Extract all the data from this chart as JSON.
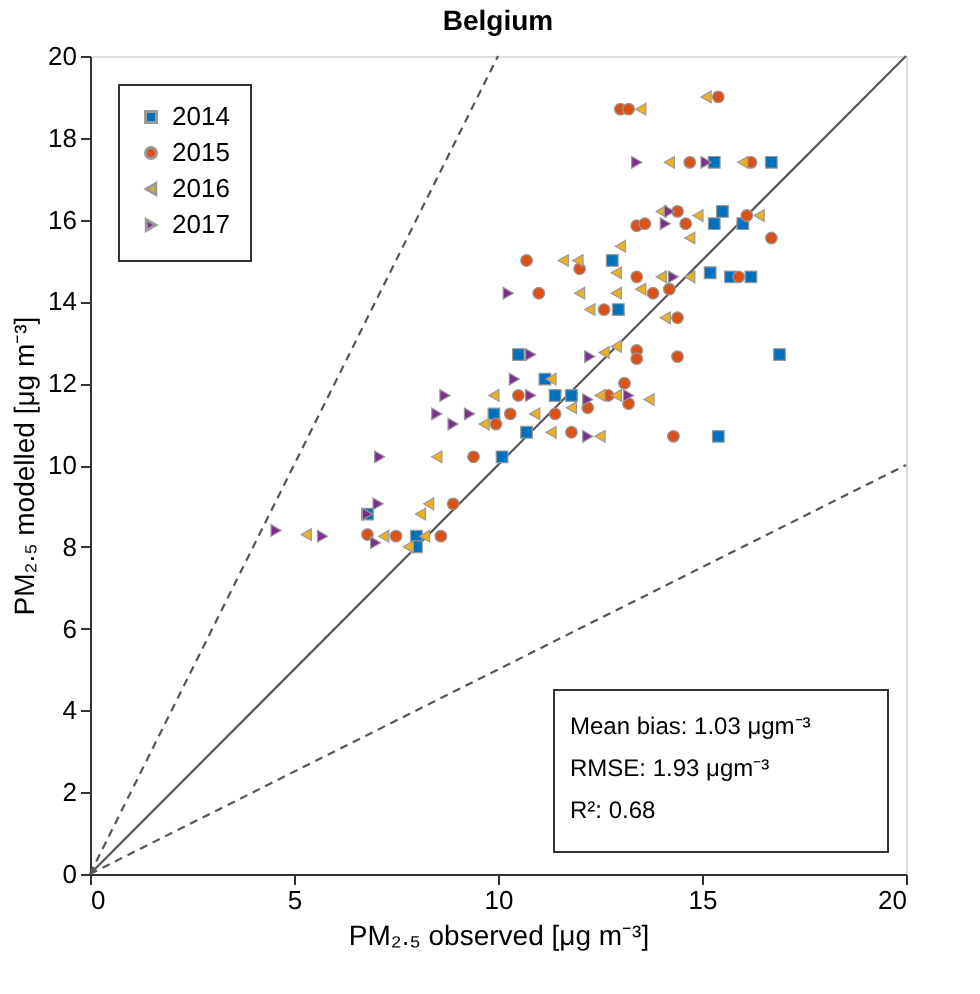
{
  "chart_data": {
    "type": "scatter",
    "title": "Belgium",
    "xlabel": "PM₂.₅ observed [μg m⁻³]",
    "ylabel": "PM₂.₅ modelled [μg m⁻³]",
    "xlim": [
      0,
      20
    ],
    "ylim": [
      0,
      20
    ],
    "xticks": [
      0,
      5,
      10,
      15,
      20
    ],
    "yticks": [
      0,
      2,
      4,
      6,
      8,
      10,
      12,
      14,
      16,
      18,
      20
    ],
    "grid": false,
    "legend": "top left",
    "annotations": [
      "Mean bias: 1.03 μgm⁻³",
      "RMSE: 1.93 μgm⁻³",
      "R²: 0.68"
    ],
    "series": [
      {
        "type": "line",
        "x": [
          0,
          20
        ],
        "values": [
          0,
          20
        ],
        "color": "#555555",
        "line_style": "solid"
      },
      {
        "type": "line",
        "x": [
          0,
          10
        ],
        "values": [
          0,
          20
        ],
        "color": "#555555",
        "line_style": "dashed"
      },
      {
        "type": "line",
        "x": [
          0,
          20
        ],
        "values": [
          0,
          10
        ],
        "color": "#555555",
        "line_style": "dashed"
      },
      {
        "name": "2014",
        "color": "#0072bd",
        "marker": "square",
        "x": [
          15.3,
          16.7,
          15.5,
          15.3,
          16.0,
          12.8,
          15.2,
          15.7,
          16.2,
          12.95,
          10.5,
          16.9,
          11.15,
          9.9,
          11.4,
          11.8,
          10.1,
          10.7,
          15.4,
          6.8,
          8.0,
          8.0
        ],
        "values": [
          17.4,
          17.4,
          16.2,
          15.9,
          15.9,
          15.0,
          14.7,
          14.6,
          14.6,
          13.8,
          12.7,
          12.7,
          12.1,
          11.25,
          11.7,
          11.7,
          10.2,
          10.8,
          10.7,
          8.8,
          8.26,
          8.0
        ]
      },
      {
        "name": "2015",
        "color": "#d95319",
        "marker": "circle",
        "x": [
          15.4,
          13.0,
          13.2,
          14.7,
          16.2,
          13.4,
          14.4,
          16.1,
          16.7,
          13.6,
          14.6,
          10.7,
          12.0,
          13.4,
          15.9,
          11.0,
          13.8,
          14.2,
          12.6,
          14.4,
          13.4,
          13.4,
          14.4,
          13.1,
          10.5,
          10.3,
          9.95,
          9.4,
          11.4,
          12.2,
          12.7,
          13.2,
          11.8,
          14.3,
          8.9,
          6.8,
          7.5,
          8.6
        ],
        "values": [
          19.0,
          18.7,
          18.7,
          17.4,
          17.4,
          15.85,
          16.2,
          16.1,
          15.55,
          15.9,
          15.9,
          15.0,
          14.8,
          14.6,
          14.6,
          14.2,
          14.2,
          14.3,
          13.8,
          13.6,
          12.8,
          12.6,
          12.65,
          12.0,
          11.7,
          11.25,
          11.0,
          10.2,
          11.25,
          11.4,
          11.7,
          11.5,
          10.8,
          10.7,
          9.05,
          8.3,
          8.26,
          8.26
        ]
      },
      {
        "name": "2016",
        "color": "#edb120",
        "marker": "triangle-left",
        "x": [
          15.1,
          13.5,
          14.2,
          16.0,
          14.0,
          14.9,
          16.4,
          14.7,
          13.0,
          11.6,
          11.96,
          12.9,
          14.0,
          14.7,
          12.0,
          12.9,
          13.5,
          12.25,
          14.1,
          12.6,
          12.9,
          11.3,
          9.66,
          9.9,
          8.5,
          10.9,
          11.8,
          12.5,
          12.9,
          13.7,
          11.3,
          12.5,
          8.1,
          8.3,
          5.3,
          7.2,
          7.8,
          8.2
        ],
        "values": [
          19.0,
          18.7,
          17.4,
          17.4,
          16.2,
          16.1,
          16.1,
          15.55,
          15.35,
          15.0,
          15.0,
          14.7,
          14.6,
          14.6,
          14.2,
          14.2,
          14.3,
          13.8,
          13.6,
          12.75,
          12.9,
          12.1,
          11.0,
          11.7,
          10.2,
          11.25,
          11.4,
          11.7,
          11.7,
          11.6,
          10.8,
          10.7,
          8.8,
          9.05,
          8.3,
          8.26,
          8.0,
          8.26
        ]
      },
      {
        "name": "2017",
        "color": "#7e2f8e",
        "marker": "triangle-right",
        "x": [
          13.4,
          15.1,
          14.2,
          14.1,
          14.3,
          10.25,
          10.8,
          12.25,
          10.4,
          8.7,
          10.8,
          8.5,
          9.3,
          8.9,
          12.2,
          13.2,
          12.2,
          7.1,
          7.06,
          6.8,
          4.56,
          5.7,
          7.0
        ],
        "values": [
          17.4,
          17.4,
          16.2,
          15.9,
          14.6,
          14.2,
          12.7,
          12.65,
          12.1,
          11.7,
          11.7,
          11.25,
          11.25,
          11.0,
          11.6,
          11.7,
          10.7,
          10.2,
          9.05,
          8.8,
          8.4,
          8.26,
          8.1
        ]
      }
    ]
  }
}
